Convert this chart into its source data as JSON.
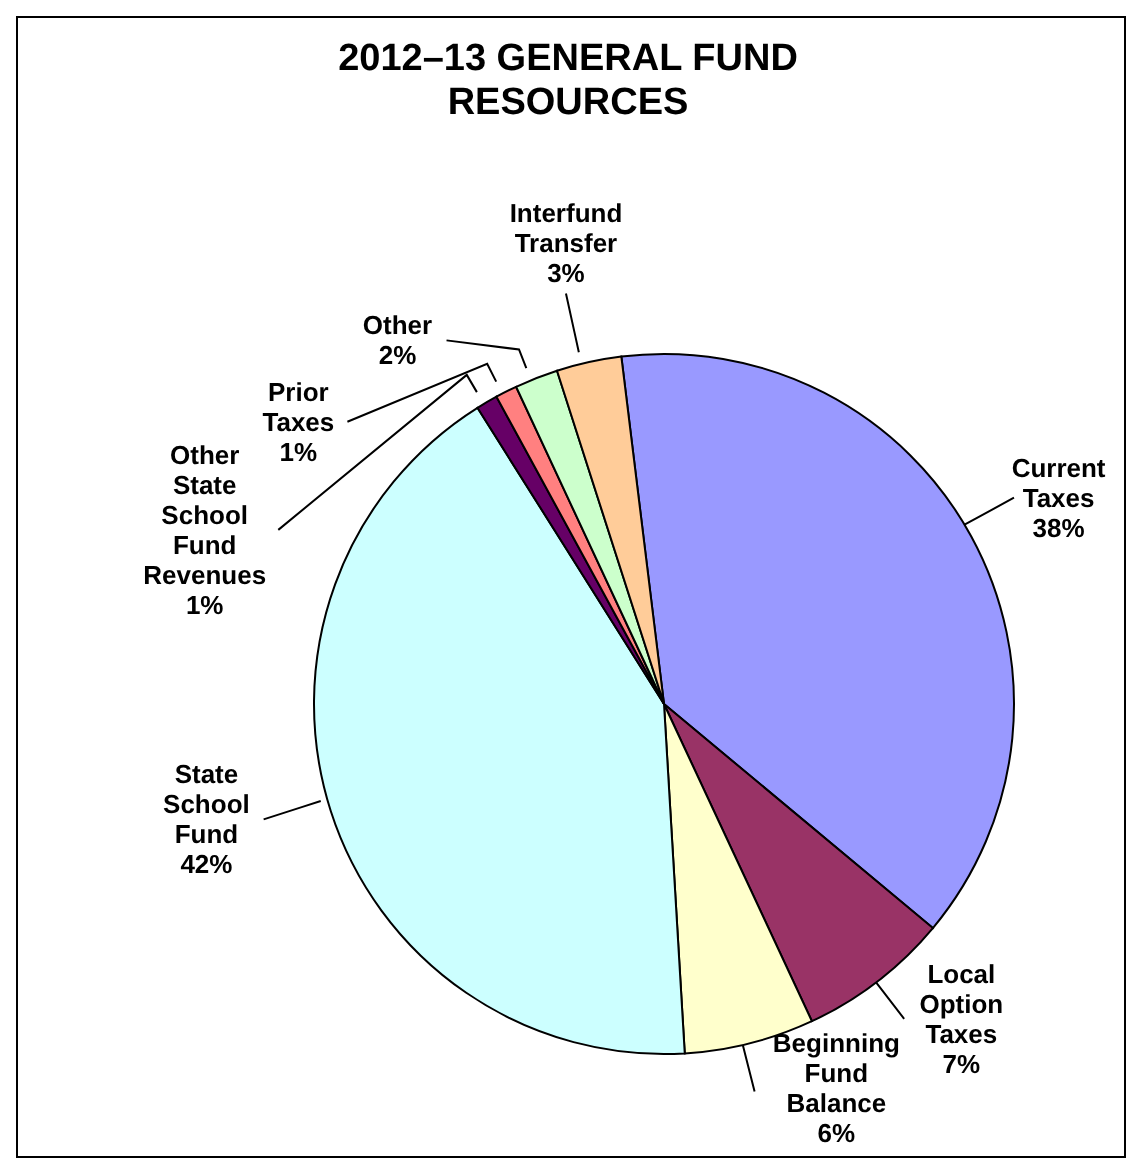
{
  "chart_data": {
    "type": "pie",
    "title": "2012–13 GENERAL FUND RESOURCES",
    "categories": [
      "Current Taxes",
      "Local Option Taxes",
      "Beginning Fund Balance",
      "State School Fund",
      "Other State School Fund Revenues",
      "Prior Taxes",
      "Other",
      "Interfund Transfer"
    ],
    "values": [
      38,
      7,
      6,
      42,
      1,
      1,
      2,
      3
    ],
    "value_labels": [
      "38%",
      "7%",
      "6%",
      "42%",
      "1%",
      "1%",
      "2%",
      "3%"
    ],
    "colors": [
      "#9999ff",
      "#993366",
      "#ffffcc",
      "#ccffff",
      "#660066",
      "#ff8080",
      "#ccffcc",
      "#ffcc99"
    ]
  }
}
